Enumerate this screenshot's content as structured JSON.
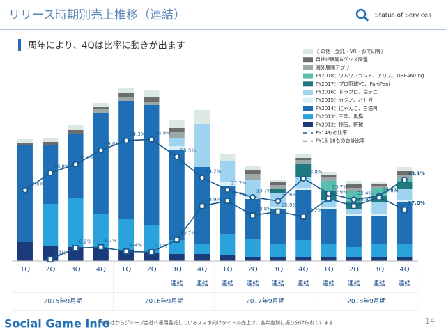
{
  "header": {
    "title": "リリース時期別売上推移（連結）",
    "tagline": "Status of Services",
    "subtitle": "周年により、4Qは比率に動きが出ます"
  },
  "footnote": "※弊社からグループ会社へ運用委託しているスマホ向けタイトル売上は、各年度別に振り分けられています",
  "page_number": "14",
  "watermark": "Social Game Info",
  "chart_data": {
    "type": "bar",
    "stacked": true,
    "categories": [
      "1Q",
      "2Q",
      "3Q",
      "4Q",
      "1Q",
      "2Q",
      "3Q",
      "4Q",
      "1Q",
      "2Q",
      "3Q",
      "4Q",
      "1Q",
      "2Q",
      "3Q",
      "4Q"
    ],
    "sublabels": [
      null,
      null,
      null,
      null,
      null,
      null,
      "連結",
      "連結",
      "連結",
      "連結",
      "連結",
      "連結",
      "連結",
      "連結",
      "連結",
      "連結"
    ],
    "groups": [
      {
        "label": "2015年9月期",
        "size": 4
      },
      {
        "label": "2016年9月期",
        "size": 4
      },
      {
        "label": "2017年9月期",
        "size": 4
      },
      {
        "label": "2018年9月期",
        "size": 4
      }
    ],
    "series": [
      {
        "name": "その他（受託・VR・おで研等）",
        "color": "#dce9e3",
        "values": [
          5,
          6,
          7,
          6,
          8,
          10,
          12,
          20,
          10,
          7,
          4,
          5,
          5,
          5,
          3,
          6
        ]
      },
      {
        "name": "自社IP展開&グッズ関連",
        "color": "#6d6d6d",
        "values": [
          3,
          4,
          5,
          3,
          6,
          6,
          6,
          0,
          0,
          5,
          4,
          3,
          3,
          5,
          2,
          5
        ]
      },
      {
        "name": "海外展開アプリ",
        "color": "#9aa8a8",
        "values": [
          0,
          0,
          0,
          5,
          5,
          5,
          8,
          0,
          0,
          8,
          6,
          5,
          5,
          5,
          3,
          6
        ]
      },
      {
        "name": "FY2018：ツムツムランド、アリス、DREAM!ing",
        "color": "#5bbfae",
        "values": [
          0,
          0,
          0,
          0,
          0,
          0,
          0,
          0,
          0,
          0,
          0,
          0,
          15,
          15,
          12,
          5
        ]
      },
      {
        "name": "FY2017：プロ野球VS、PaniPani",
        "color": "#1f7a80",
        "values": [
          0,
          0,
          0,
          0,
          0,
          0,
          0,
          0,
          0,
          0,
          5,
          20,
          12,
          10,
          8,
          10
        ]
      },
      {
        "name": "FY2016：ドラプロ、白テニ",
        "color": "#9fd4f0",
        "values": [
          0,
          0,
          0,
          0,
          0,
          0,
          12,
          62,
          30,
          25,
          20,
          15,
          10,
          8,
          18,
          15
        ]
      },
      {
        "name": "FY2015：カジノ、バトガ",
        "color": "#d9eef5",
        "values": [
          0,
          0,
          0,
          0,
          0,
          0,
          5,
          0,
          5,
          3,
          3,
          3,
          3,
          2,
          2,
          3
        ]
      },
      {
        "name": "FY2014：にゃんこ、白猫PJ",
        "color": "#1e6fb5",
        "values": [
          140,
          85,
          93,
          145,
          170,
          172,
          130,
          110,
          70,
          58,
          50,
          72,
          50,
          45,
          40,
          60
        ]
      },
      {
        "name": "FY2013：三国、黒猫",
        "color": "#2aa3dc",
        "values": [
          0,
          60,
          70,
          50,
          45,
          40,
          20,
          15,
          30,
          25,
          20,
          25,
          20,
          15,
          20,
          20
        ]
      },
      {
        "name": "FY2012：秘宝、野球",
        "color": "#1b3a7a",
        "values": [
          27,
          22,
          20,
          18,
          15,
          12,
          10,
          10,
          8,
          6,
          5,
          5,
          5,
          5,
          5,
          5
        ]
      },
      {
        "name": "FY14もの比率",
        "type": "line",
        "marker": "circle",
        "color": "#1b5a8a",
        "values": [
          37.5,
          46.8,
          51.5,
          59.0,
          64.3,
          64.9,
          55.5,
          44.2,
          37.7,
          33.7,
          31.6,
          43.8,
          35.7,
          32.4,
          34.4,
          43.1
        ],
        "value_labels": [
          "37.5%",
          "46.8%",
          "51.5%",
          "59.0%",
          "64.3%",
          "64.9%",
          "55.5%",
          "44.2%",
          "37.7%",
          "33.7%",
          "31.6%",
          "43.8%",
          "35.7%",
          "32.4%",
          "34.4%",
          "43.1%"
        ]
      },
      {
        "name": "FY15-18もの合計比率",
        "type": "line",
        "marker": "square",
        "color": "#1b5a8a",
        "values": [
          null,
          0.1,
          6.2,
          6.7,
          4.4,
          4.0,
          10.7,
          28.9,
          31.7,
          23.8,
          25.9,
          23.2,
          32.9,
          28.9,
          33.6,
          27.0
        ],
        "value_labels": [
          null,
          "0.1%",
          "6.2%",
          "6.7%",
          "4.4%",
          "4.0%",
          "10.7%",
          "28.9%",
          "31.7%",
          "23.8%",
          "25.9%",
          "23.2%",
          "32.9%",
          "28.9%",
          "33.6%",
          "27.0%"
        ]
      }
    ]
  }
}
